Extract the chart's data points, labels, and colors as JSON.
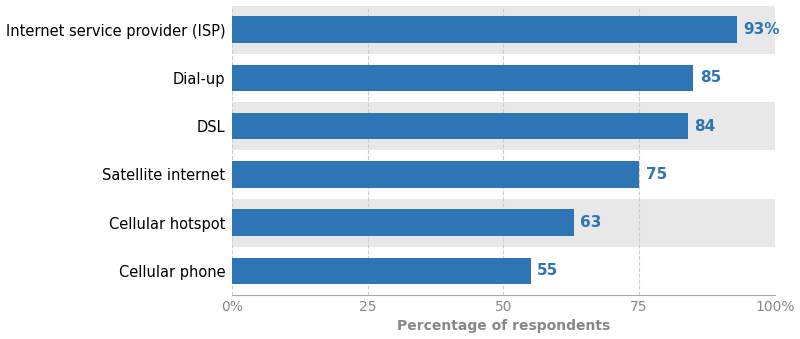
{
  "categories": [
    "Internet service provider (ISP)",
    "Dial-up",
    "DSL",
    "Satellite internet",
    "Cellular hotspot",
    "Cellular phone"
  ],
  "values": [
    93,
    85,
    84,
    75,
    63,
    55
  ],
  "labels": [
    "93%",
    "85",
    "84",
    "75",
    "63",
    "55"
  ],
  "bar_color": "#2e75b6",
  "label_color": "#2e75b6",
  "background_color": "#ffffff",
  "row_alt_color": "#e8e8e8",
  "row_white_color": "#ffffff",
  "xlabel": "Percentage of respondents",
  "xlim": [
    0,
    100
  ],
  "xtick_values": [
    0,
    25,
    50,
    75,
    100
  ],
  "xtick_labels": [
    "0%",
    "25",
    "50",
    "75",
    "100%"
  ],
  "bar_height": 0.55,
  "label_fontsize": 11,
  "tick_label_fontsize": 10,
  "xlabel_fontsize": 10,
  "ylabel_fontsize": 10.5,
  "grid_color": "#cccccc",
  "grid_linestyle": "--",
  "grid_linewidth": 0.8,
  "spine_color": "#aaaaaa"
}
